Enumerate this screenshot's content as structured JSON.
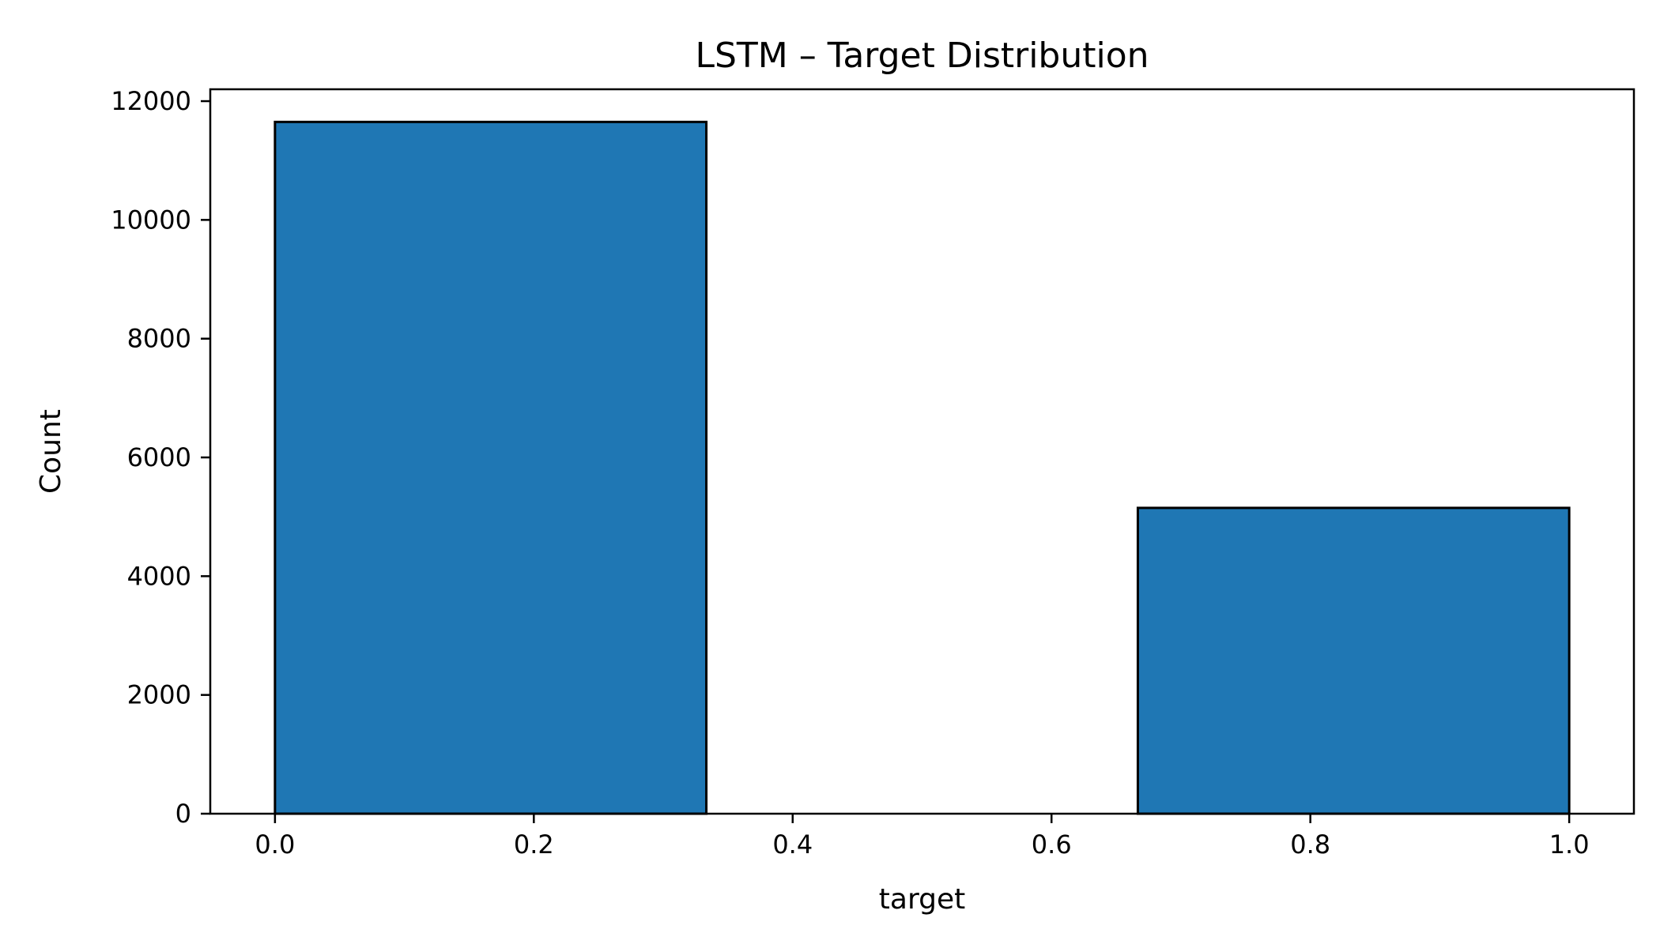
{
  "chart_data": {
    "type": "bar",
    "title": "LSTM – Target Distribution",
    "xlabel": "target",
    "ylabel": "Count",
    "bins": [
      {
        "x0": 0.0,
        "x1": 0.3333,
        "value": 11650
      },
      {
        "x0": 0.3333,
        "x1": 0.6667,
        "value": 0
      },
      {
        "x0": 0.6667,
        "x1": 1.0,
        "value": 5150
      }
    ],
    "xlim": [
      -0.05,
      1.05
    ],
    "ylim": [
      0,
      12200
    ],
    "xticks": [
      0.0,
      0.2,
      0.4,
      0.6,
      0.8,
      1.0
    ],
    "xtick_labels": [
      "0.0",
      "0.2",
      "0.4",
      "0.6",
      "0.8",
      "1.0"
    ],
    "yticks": [
      0,
      2000,
      4000,
      6000,
      8000,
      10000,
      12000
    ],
    "ytick_labels": [
      "0",
      "2000",
      "4000",
      "6000",
      "8000",
      "10000",
      "12000"
    ],
    "grid": false,
    "bar_color": "#1f77b4",
    "edge_color": "#000000"
  }
}
